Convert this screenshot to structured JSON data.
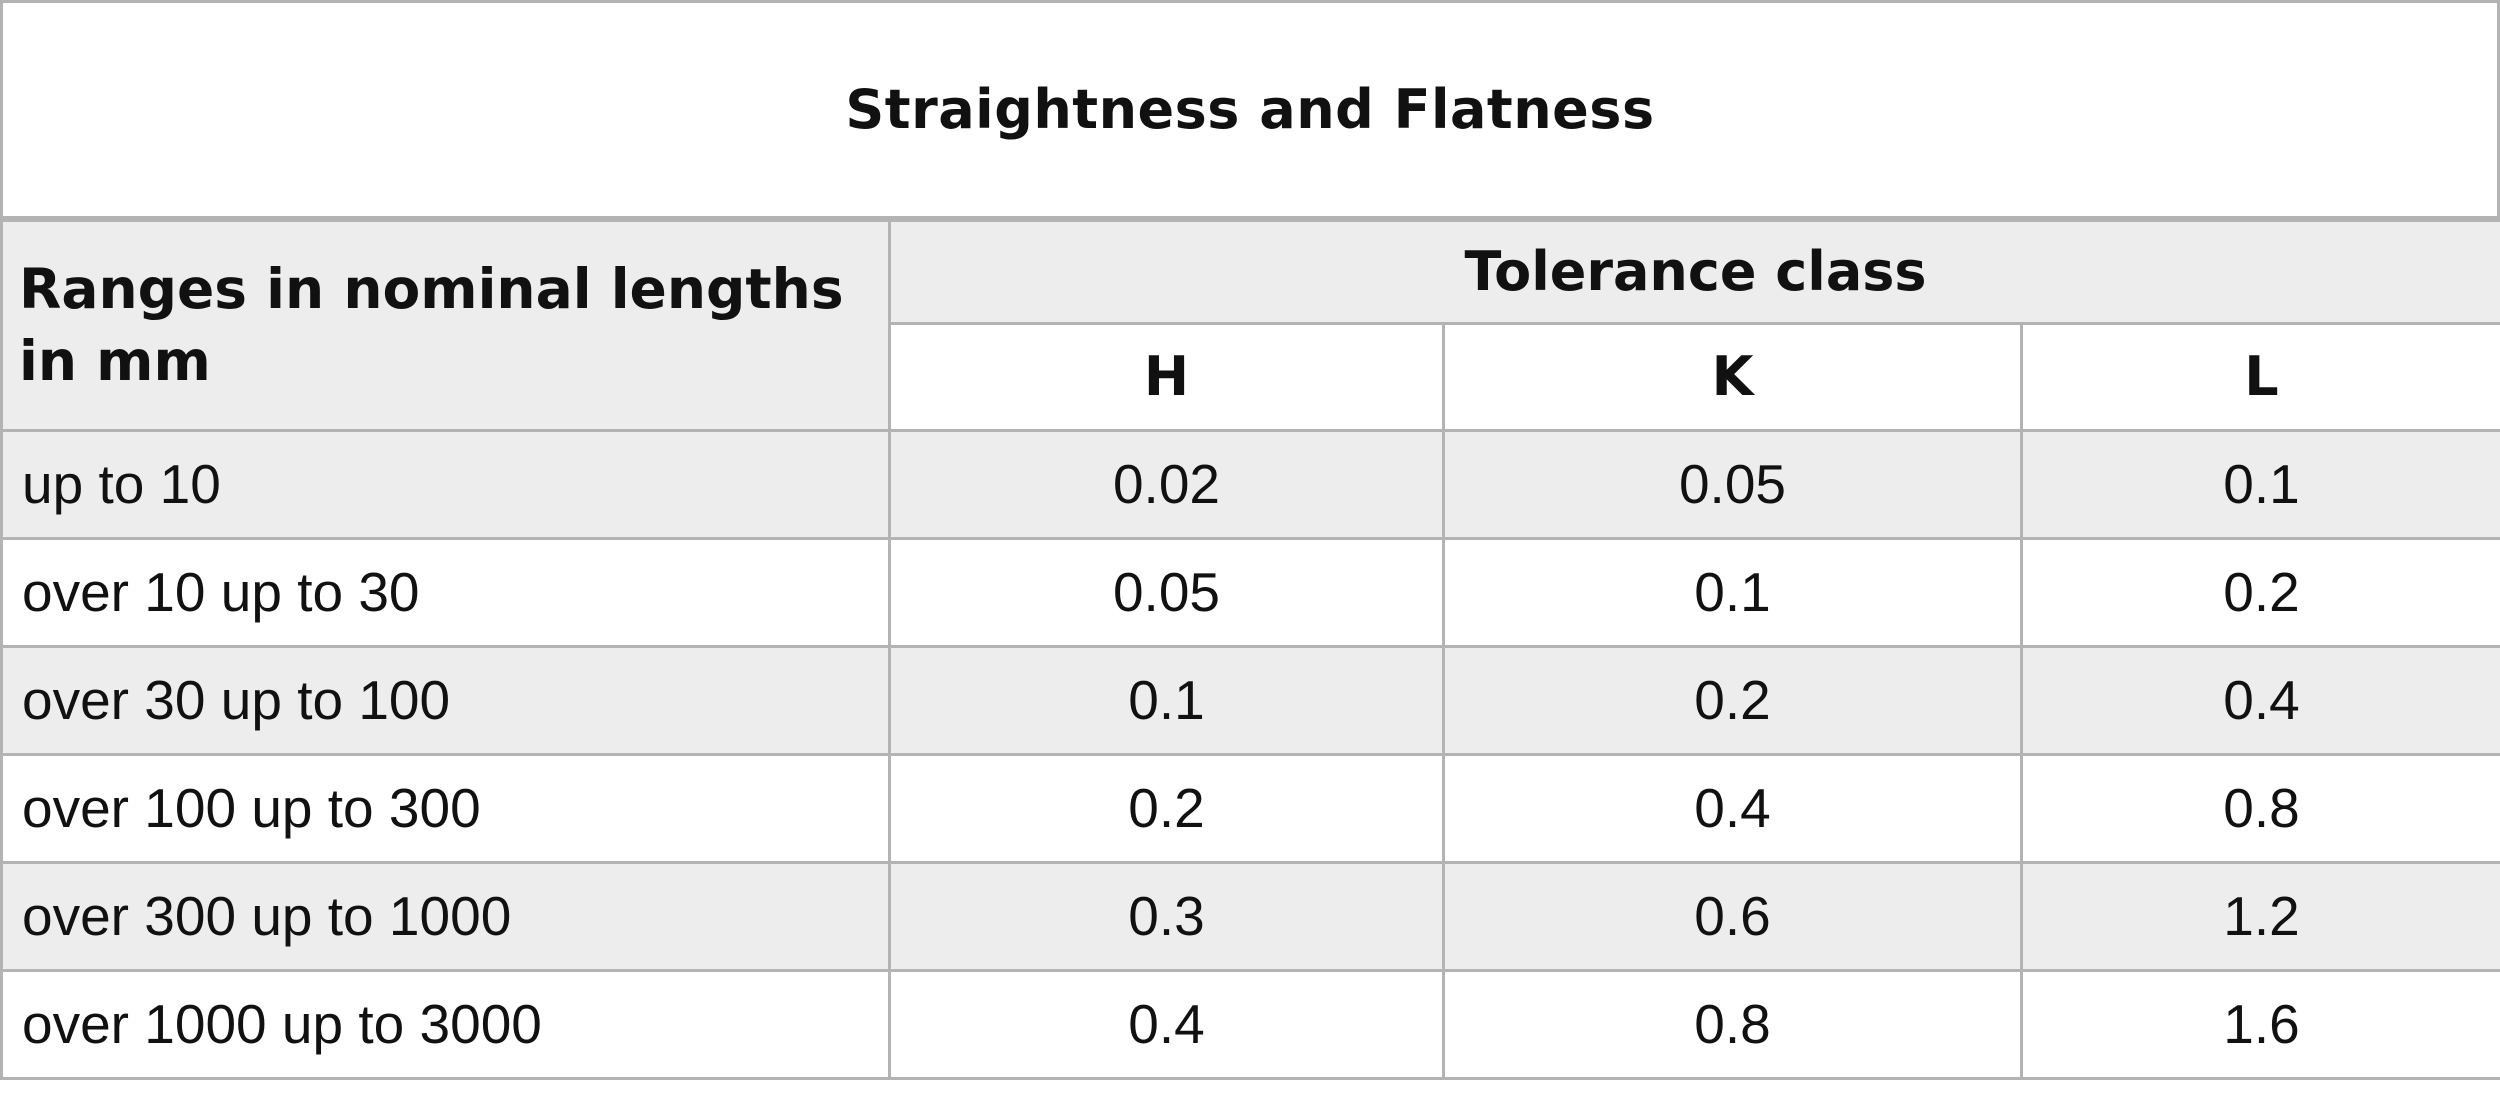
{
  "title": "Straightness and Flatness",
  "header": {
    "range_label": "Ranges in nominal lengths in mm",
    "group_label": "Tolerance class",
    "classes": [
      "H",
      "K",
      "L"
    ]
  },
  "rows": [
    {
      "range": "up to 10",
      "values": [
        "0.02",
        "0.05",
        "0.1"
      ]
    },
    {
      "range": "over 10 up to 30",
      "values": [
        "0.05",
        "0.1",
        "0.2"
      ]
    },
    {
      "range": "over 30 up to 100",
      "values": [
        "0.1",
        "0.2",
        "0.4"
      ]
    },
    {
      "range": "over 100 up to 300",
      "values": [
        "0.2",
        "0.4",
        "0.8"
      ]
    },
    {
      "range": "over 300 up to 1000",
      "values": [
        "0.3",
        "0.6",
        "1.2"
      ]
    },
    {
      "range": "over 1000 up to 3000",
      "values": [
        "0.4",
        "0.8",
        "1.6"
      ]
    }
  ],
  "colors": {
    "border": "#b3b3b3",
    "shaded_row": "#ededed",
    "plain_row": "#ffffff",
    "text": "#111111"
  }
}
